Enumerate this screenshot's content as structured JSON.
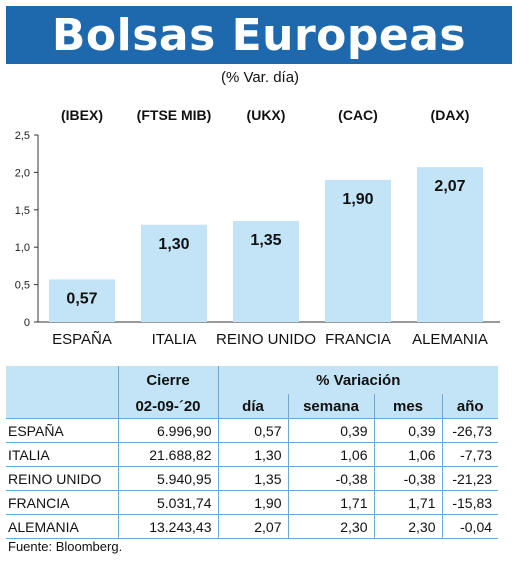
{
  "title": "Bolsas Europeas",
  "subtitle": "(% Var. día)",
  "chart_data": {
    "type": "bar",
    "categories": [
      "ESPAÑA",
      "ITALIA",
      "REINO UNIDO",
      "FRANCIA",
      "ALEMANIA"
    ],
    "index_labels": [
      "(IBEX)",
      "(FTSE MIB)",
      "(UKX)",
      "(CAC)",
      "(DAX)"
    ],
    "values": [
      0.57,
      1.3,
      1.35,
      1.9,
      2.07
    ],
    "value_labels": [
      "0,57",
      "1,30",
      "1,35",
      "1,90",
      "2,07"
    ],
    "yticks": [
      0,
      0.5,
      1.0,
      1.5,
      2.0,
      2.5
    ],
    "ytick_labels": [
      "0",
      "0,5",
      "1,0",
      "1,5",
      "2,0",
      "2,5"
    ],
    "ylim": [
      0,
      2.5
    ],
    "bar_color": "#c3e4f6",
    "grid": false
  },
  "table": {
    "header_cierre": "Cierre",
    "header_variacion": "% Variación",
    "date": "02-09-´20",
    "col_dia": "día",
    "col_semana": "semana",
    "col_mes": "mes",
    "col_ano": "año",
    "rows": [
      {
        "country": "ESPAÑA",
        "cierre": "6.996,90",
        "dia": "0,57",
        "semana": "0,39",
        "mes": "0,39",
        "ano": "-26,73"
      },
      {
        "country": "ITALIA",
        "cierre": "21.688,82",
        "dia": "1,30",
        "semana": "1,06",
        "mes": "1,06",
        "ano": "-7,73"
      },
      {
        "country": "REINO UNIDO",
        "cierre": "5.940,95",
        "dia": "1,35",
        "semana": "-0,38",
        "mes": "-0,38",
        "ano": "-21,23"
      },
      {
        "country": "FRANCIA",
        "cierre": "5.031,74",
        "dia": "1,90",
        "semana": "1,71",
        "mes": "1,71",
        "ano": "-15,83"
      },
      {
        "country": "ALEMANIA",
        "cierre": "13.243,43",
        "dia": "2,07",
        "semana": "2,30",
        "mes": "2,30",
        "ano": "-0,04"
      }
    ]
  },
  "source": "Fuente: Bloomberg.",
  "colors": {
    "banner": "#1e69ad",
    "accent_light": "#c3e4f6"
  }
}
